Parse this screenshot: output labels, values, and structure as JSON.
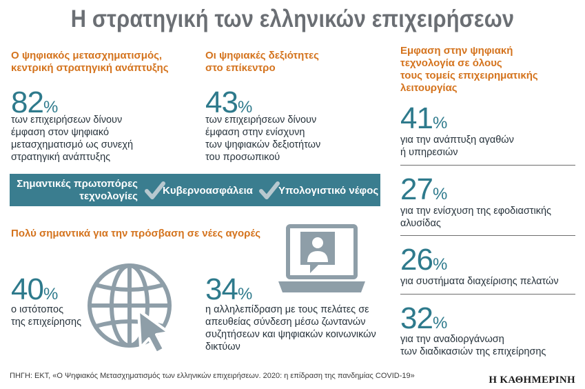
{
  "title": "Η στρατηγική των ελληνικών επιχειρήσεων",
  "col1": {
    "heading_line1": "Ο ψηφιακός μετασχηματισμός,",
    "heading_line2": "κεντρική στρατηγική ανάπτυξης",
    "value": "82",
    "unit": "%",
    "desc_lines": [
      "των επιχειρήσεων δίνουν",
      "έμφαση στον ψηφιακό",
      "μετασχηματισμό ως συνεχή",
      "στρατηγική ανάπτυξης"
    ]
  },
  "col2": {
    "heading_line1": "Οι ψηφιακές δεξιότητες",
    "heading_line2": "στο επίκεντρο",
    "value": "43",
    "unit": "%",
    "desc_lines": [
      "των επιχειρήσεων δίνουν",
      "έμφαση στην ενίσχυνη",
      "των ψηφιακών δεξιοτήτων",
      "του προσωπικού"
    ]
  },
  "band": {
    "label_line1": "Σημαντικές πρωτοπόρες",
    "label_line2": "τεχνολογίες",
    "item1": "Κυβερνοασφάλεια",
    "item2": "Υπολογιστικό νέφος"
  },
  "markets": {
    "heading": "Πολύ σημαντικά για την πρόσβαση σε νέες αγορές",
    "website": {
      "value": "40",
      "unit": "%",
      "desc_lines": [
        "ο ιστότοπος",
        "της επιχείρησης"
      ]
    },
    "interaction": {
      "value": "34",
      "unit": "%",
      "desc_lines": [
        "η αλληλεπίδραση με τους πελάτες σε",
        "απευθείας σύνδεση μέσω ζωντανών",
        "συζητήσεων και ψηφιακών κοινωνικών",
        "δικτύων"
      ]
    }
  },
  "col3": {
    "heading_lines": [
      "Εμφαση στην ψηφιακή",
      "τεχνολογία σε όλους",
      "τους τομείς επιχειρηματικής",
      "λειτουργίας"
    ],
    "items": [
      {
        "value": "41",
        "unit": "%",
        "desc_lines": [
          "για την ανάπτυξη αγαθών",
          "ή υπηρεσιών"
        ]
      },
      {
        "value": "27",
        "unit": "%",
        "desc_lines": [
          "για την ενίσχυση της εφοδιαστικής",
          "αλυσίδας"
        ]
      },
      {
        "value": "26",
        "unit": "%",
        "desc_lines": [
          "για συστήματα διαχείρισης πελατών"
        ]
      },
      {
        "value": "32",
        "unit": "%",
        "desc_lines": [
          "για την αναδιοργάνωση",
          "των διαδικασιών της επιχείρησης"
        ]
      }
    ]
  },
  "icons": {
    "check": "check-icon",
    "globe": "globe-icon",
    "cursor": "cursor-arrow-icon",
    "laptop": "laptop-chat-icon"
  },
  "colors": {
    "accent_orange": "#d4731d",
    "teal": "#2e7a8c",
    "band": "#3a7d8f",
    "icon_grey": "#8e9ea8",
    "title_grey": "#6b6f74"
  },
  "source": "ΠΗΓΗ: ΕΚΤ, «Ο Ψηφιακός Μετασχηματισμός των ελληνικών επιχειρήσεων. 2020: η επίδραση της πανδημίας COVID-19»",
  "logo": "Η ΚΑΘΗΜΕΡΙΝΗ"
}
